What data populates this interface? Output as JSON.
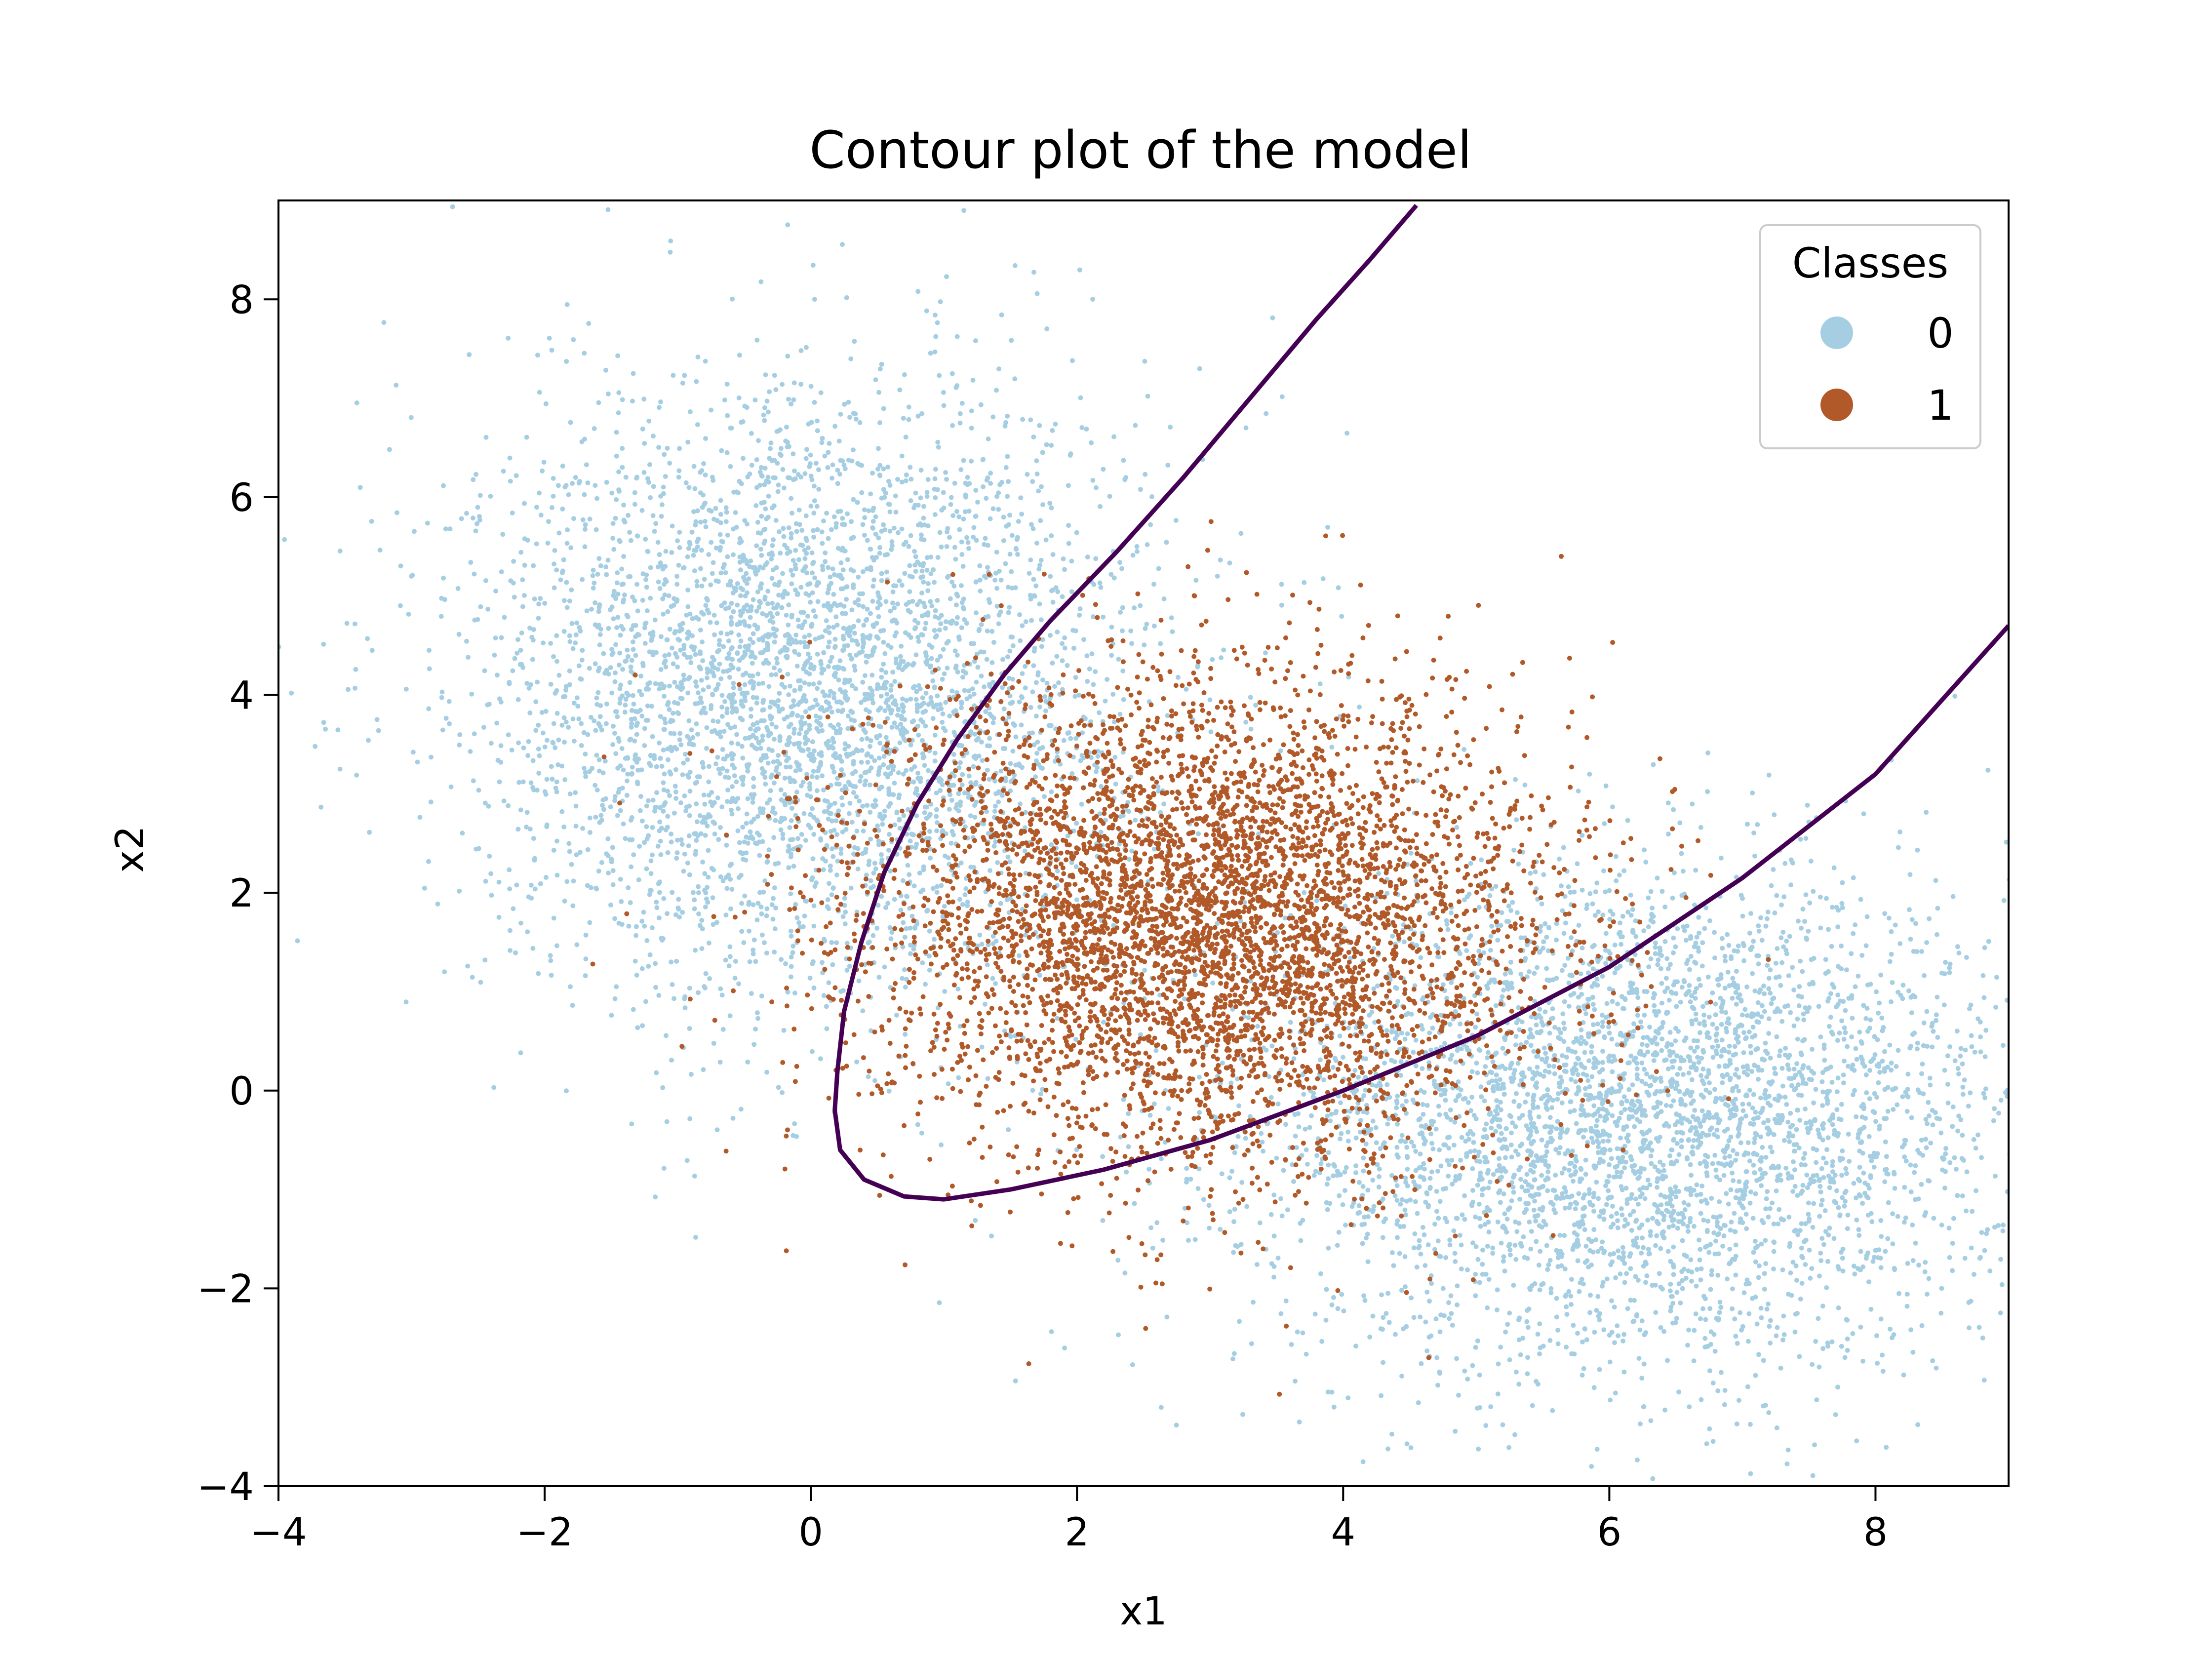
{
  "chart_data": {
    "type": "scatter",
    "title": "Contour plot of the model",
    "xlabel": "x1",
    "ylabel": "x2",
    "xlim": [
      -4,
      9
    ],
    "ylim": [
      -4,
      9
    ],
    "x_ticks": [
      -4,
      -2,
      0,
      2,
      4,
      6,
      8
    ],
    "y_ticks": [
      -4,
      -2,
      0,
      2,
      4,
      6,
      8
    ],
    "x_tick_labels": [
      "−4",
      "−2",
      "0",
      "2",
      "4",
      "6",
      "8"
    ],
    "y_tick_labels": [
      "−4",
      "−2",
      "0",
      "2",
      "4",
      "6",
      "8"
    ],
    "grid": false,
    "legend": {
      "title": "Classes",
      "placement": "top-right",
      "entries": [
        {
          "label": "0",
          "color": "#a6cee3"
        },
        {
          "label": "1",
          "color": "#b15928"
        }
      ]
    },
    "clusters": [
      {
        "class": "0",
        "color": "#a6cee3",
        "center": [
          0,
          4
        ],
        "std": [
          1.25,
          1.55
        ],
        "count": 4200
      },
      {
        "class": "0",
        "color": "#a6cee3",
        "center": [
          6.2,
          -0.3
        ],
        "std": [
          1.45,
          1.25
        ],
        "count": 4200
      },
      {
        "class": "1",
        "color": "#b15928",
        "center": [
          3,
          1.7
        ],
        "std": [
          1.25,
          1.2
        ],
        "count": 5200
      }
    ],
    "decision_boundary": {
      "color": "#440154",
      "points": [
        [
          4.55,
          8.95
        ],
        [
          4.2,
          8.4
        ],
        [
          3.8,
          7.8
        ],
        [
          3.3,
          7.0
        ],
        [
          2.8,
          6.2
        ],
        [
          2.3,
          5.45
        ],
        [
          1.8,
          4.75
        ],
        [
          1.45,
          4.2
        ],
        [
          1.1,
          3.55
        ],
        [
          0.8,
          2.9
        ],
        [
          0.55,
          2.2
        ],
        [
          0.38,
          1.5
        ],
        [
          0.25,
          0.8
        ],
        [
          0.2,
          0.2
        ],
        [
          0.18,
          -0.2
        ],
        [
          0.22,
          -0.6
        ],
        [
          0.4,
          -0.9
        ],
        [
          0.7,
          -1.07
        ],
        [
          1.0,
          -1.1
        ],
        [
          1.5,
          -1.0
        ],
        [
          2.2,
          -0.8
        ],
        [
          3.0,
          -0.5
        ],
        [
          4.0,
          0.0
        ],
        [
          5.0,
          0.55
        ],
        [
          6.0,
          1.25
        ],
        [
          7.0,
          2.15
        ],
        [
          8.0,
          3.2
        ],
        [
          9.0,
          4.7
        ]
      ]
    }
  }
}
